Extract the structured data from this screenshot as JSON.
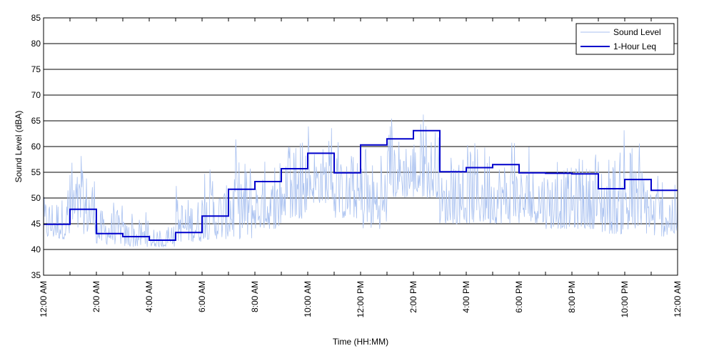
{
  "chart_data": {
    "type": "line",
    "title": "",
    "xlabel": "Time (HH:MM)",
    "ylabel": "Sound Level (dBA)",
    "ylim": [
      35,
      85
    ],
    "yticks": [
      35,
      40,
      45,
      50,
      55,
      60,
      65,
      70,
      75,
      80,
      85
    ],
    "xlim_hours": [
      0,
      24
    ],
    "xticks": [
      {
        "hour": 0,
        "label": "12:00 AM"
      },
      {
        "hour": 1,
        "label": ""
      },
      {
        "hour": 2,
        "label": "2:00 AM"
      },
      {
        "hour": 3,
        "label": ""
      },
      {
        "hour": 4,
        "label": "4:00 AM"
      },
      {
        "hour": 5,
        "label": ""
      },
      {
        "hour": 6,
        "label": "6:00 AM"
      },
      {
        "hour": 7,
        "label": ""
      },
      {
        "hour": 8,
        "label": "8:00 AM"
      },
      {
        "hour": 9,
        "label": ""
      },
      {
        "hour": 10,
        "label": "10:00 AM"
      },
      {
        "hour": 11,
        "label": ""
      },
      {
        "hour": 12,
        "label": "12:00 PM"
      },
      {
        "hour": 13,
        "label": ""
      },
      {
        "hour": 14,
        "label": "2:00 PM"
      },
      {
        "hour": 15,
        "label": ""
      },
      {
        "hour": 16,
        "label": "4:00 PM"
      },
      {
        "hour": 17,
        "label": ""
      },
      {
        "hour": 18,
        "label": "6:00 PM"
      },
      {
        "hour": 19,
        "label": ""
      },
      {
        "hour": 20,
        "label": "8:00 PM"
      },
      {
        "hour": 21,
        "label": ""
      },
      {
        "hour": 22,
        "label": "10:00 PM"
      },
      {
        "hour": 23,
        "label": ""
      },
      {
        "hour": 24,
        "label": "12:00 AM"
      }
    ],
    "grid": "horizontal",
    "legend_position": "top-right",
    "series": [
      {
        "name": "Sound Level",
        "color": "#a9c1f0",
        "style": "thin noisy line",
        "hourly_band_min": [
          42,
          43,
          41,
          40.5,
          40.5,
          41.5,
          42,
          42,
          44,
          46,
          49,
          46,
          44,
          50,
          50,
          45,
          45,
          45,
          45,
          44,
          44,
          43,
          43,
          42.5
        ],
        "hourly_band_max": [
          53,
          59.5,
          50,
          47.5,
          44.5,
          53,
          56,
          63,
          57.5,
          61,
          64,
          61,
          62,
          66,
          66.5,
          58,
          66,
          62,
          60,
          60,
          60.5,
          64,
          61,
          56
        ]
      },
      {
        "name": "1-Hour Leq",
        "color": "#0000cc",
        "style": "step",
        "hours": [
          0,
          1,
          2,
          3,
          4,
          5,
          6,
          7,
          8,
          9,
          10,
          11,
          12,
          13,
          14,
          15,
          16,
          17,
          18,
          19,
          20,
          21,
          22,
          23
        ],
        "values": [
          44.9,
          47.8,
          43.1,
          42.5,
          41.8,
          43.3,
          46.5,
          51.7,
          53.2,
          55.7,
          58.7,
          54.9,
          60.3,
          61.5,
          63.1,
          55.1,
          55.9,
          56.5,
          54.9,
          54.8,
          54.7,
          51.8,
          53.6,
          51.5
        ]
      }
    ]
  }
}
